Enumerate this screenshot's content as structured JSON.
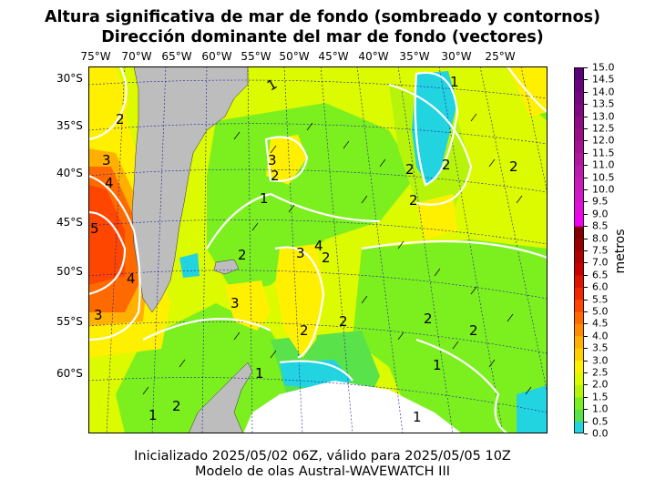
{
  "title": {
    "line1": "Altura significativa de mar de fondo (sombreado y contornos)",
    "line2": "Dirección dominante del mar de fondo (vectores)"
  },
  "map": {
    "lon_labels": [
      "75°W",
      "70°W",
      "65°W",
      "60°W",
      "55°W",
      "50°W",
      "45°W",
      "40°W",
      "35°W",
      "30°W",
      "25°W"
    ],
    "lat_labels": [
      "30°S",
      "35°S",
      "40°S",
      "45°S",
      "50°S",
      "55°S",
      "60°S"
    ],
    "contour_labels": [
      "1",
      "2",
      "3",
      "4",
      "5"
    ],
    "colors": {
      "land": "#bdbdbd",
      "ice": "#ffffff",
      "graticule": "#1a1aa0",
      "contour": "#ffffff"
    }
  },
  "colorbar": {
    "unit": "metros",
    "ticks": [
      "15.0",
      "14.5",
      "14.0",
      "13.5",
      "13.0",
      "12.5",
      "12.0",
      "11.5",
      "11.0",
      "10.5",
      "10.0",
      "9.5",
      "9.0",
      "8.5",
      "8.0",
      "7.5",
      "7.0",
      "6.5",
      "6.0",
      "5.5",
      "5.0",
      "4.5",
      "4.0",
      "3.5",
      "3.0",
      "2.5",
      "2.0",
      "1.5",
      "1.0",
      "0.5",
      "0.0"
    ],
    "bands": [
      {
        "from": 0.0,
        "to": 0.5,
        "color": "#22d3e0"
      },
      {
        "from": 0.5,
        "to": 1.0,
        "color": "#5ae24a"
      },
      {
        "from": 1.0,
        "to": 1.5,
        "color": "#7cf01e"
      },
      {
        "from": 1.5,
        "to": 2.0,
        "color": "#b6f50a"
      },
      {
        "from": 2.0,
        "to": 2.5,
        "color": "#dcfa00"
      },
      {
        "from": 2.5,
        "to": 3.0,
        "color": "#fff000"
      },
      {
        "from": 3.0,
        "to": 3.5,
        "color": "#ffd000"
      },
      {
        "from": 3.5,
        "to": 4.0,
        "color": "#ffb000"
      },
      {
        "from": 4.0,
        "to": 4.5,
        "color": "#ff8c00"
      },
      {
        "from": 4.5,
        "to": 5.0,
        "color": "#ff6a00"
      },
      {
        "from": 5.0,
        "to": 5.5,
        "color": "#ff4600"
      },
      {
        "from": 5.5,
        "to": 6.0,
        "color": "#f02800"
      },
      {
        "from": 6.0,
        "to": 6.5,
        "color": "#dc1400"
      },
      {
        "from": 6.5,
        "to": 7.0,
        "color": "#c80000"
      },
      {
        "from": 7.0,
        "to": 7.5,
        "color": "#b00000"
      },
      {
        "from": 7.5,
        "to": 8.0,
        "color": "#980000"
      },
      {
        "from": 8.0,
        "to": 8.5,
        "color": "#800000"
      },
      {
        "from": 8.5,
        "to": 9.0,
        "color": "#f000f0"
      },
      {
        "from": 9.0,
        "to": 9.5,
        "color": "#e010d8"
      },
      {
        "from": 9.5,
        "to": 10.0,
        "color": "#d018c8"
      },
      {
        "from": 10.0,
        "to": 10.5,
        "color": "#c81cb8"
      },
      {
        "from": 10.5,
        "to": 11.0,
        "color": "#bc1cac"
      },
      {
        "from": 11.0,
        "to": 11.5,
        "color": "#b0189c"
      },
      {
        "from": 11.5,
        "to": 12.0,
        "color": "#a41490"
      },
      {
        "from": 12.0,
        "to": 12.5,
        "color": "#981084"
      },
      {
        "from": 12.5,
        "to": 13.0,
        "color": "#8c0c84"
      },
      {
        "from": 13.0,
        "to": 13.5,
        "color": "#800882"
      },
      {
        "from": 13.5,
        "to": 14.0,
        "color": "#740680"
      },
      {
        "from": 14.0,
        "to": 14.5,
        "color": "#68047c"
      },
      {
        "from": 14.5,
        "to": 15.0,
        "color": "#5a0278"
      }
    ]
  },
  "footer": {
    "line1": "Inicializado 2025/05/02 06Z, válido para 2025/05/05 10Z",
    "line2": "Modelo de olas Austral-WAVEWATCH III"
  }
}
